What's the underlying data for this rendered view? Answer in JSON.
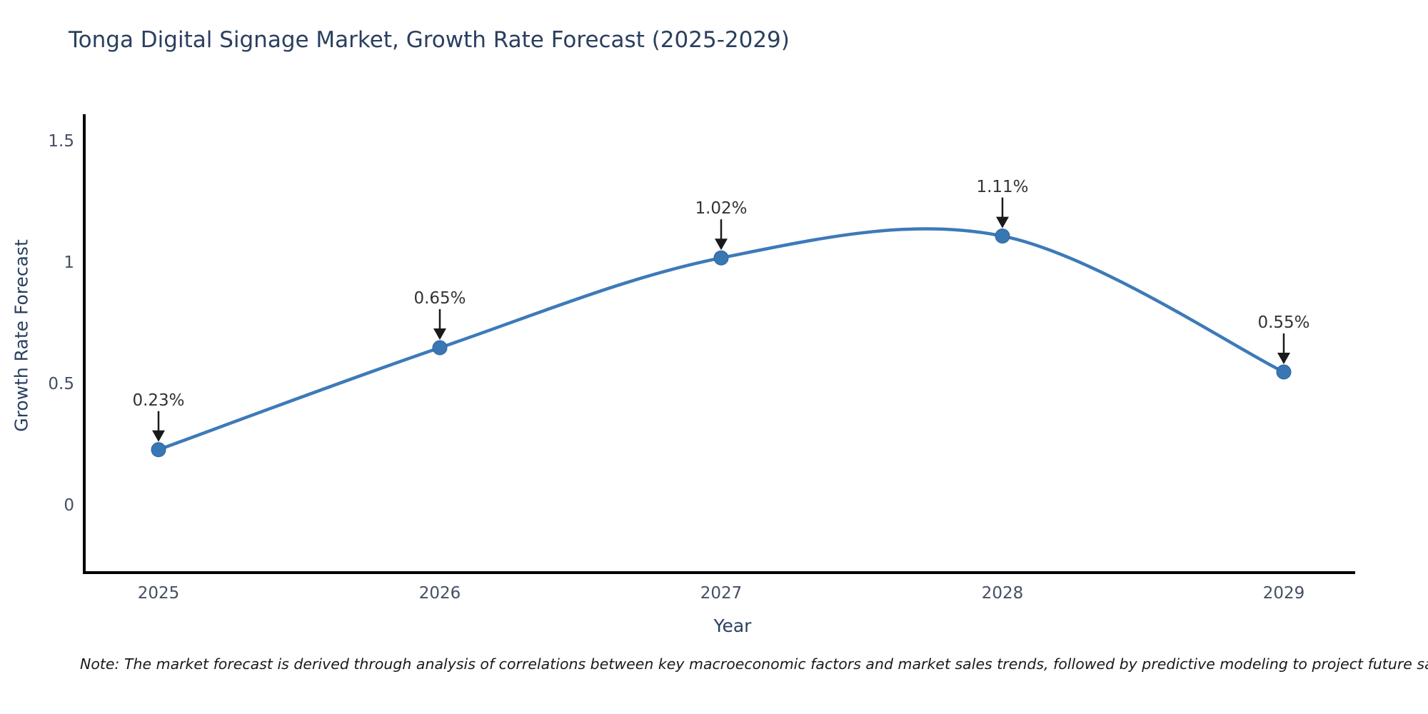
{
  "title": "Tonga Digital Signage Market, Growth Rate Forecast (2025-2029)",
  "footnote": "Note: The market forecast is derived through analysis of correlations between key macroeconomic factors and market sales trends, followed by predictive modeling to project future sales",
  "chart_data": {
    "type": "line",
    "title": "Tonga Digital Signage Market, Growth Rate Forecast (2025-2029)",
    "xlabel": "Year",
    "ylabel": "Growth Rate Forecast",
    "x": [
      2025,
      2026,
      2027,
      2028,
      2029
    ],
    "values": [
      0.23,
      0.65,
      1.02,
      1.11,
      0.55
    ],
    "point_labels": [
      "0.23%",
      "0.65%",
      "1.02%",
      "1.11%",
      "0.55%"
    ],
    "xtick_labels": [
      "2025",
      "2026",
      "2027",
      "2028",
      "2029"
    ],
    "ytick_values": [
      0,
      0.5,
      1,
      1.5
    ],
    "ytick_labels": [
      "0",
      "0.5",
      "1",
      "1.5"
    ],
    "ylim": [
      -0.28,
      1.61
    ],
    "xlim": [
      2024.73,
      2029.25
    ],
    "grid": false,
    "legend": "none",
    "smooth": true,
    "line_color": "#3d7ab8",
    "marker_color": "#3877b4",
    "marker_edge_color": "#2f6395",
    "axis_color": "#000000",
    "arrow_color": "#1a1a1a"
  }
}
